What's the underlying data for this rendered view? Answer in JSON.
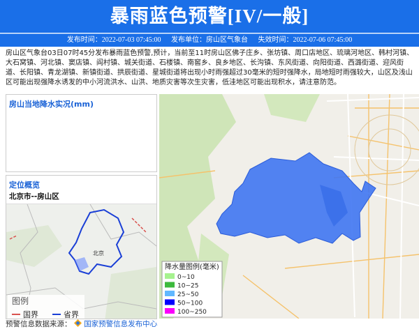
{
  "header": {
    "title": "暴雨蓝色预警[IV/一般]",
    "issue_time": "发布时间：2022-07-03 07:45:00",
    "issuer": "发布单位：房山区气象台",
    "expire_time": "失效时间：2022-07-06 07:45:00"
  },
  "content": "房山区气象台03日07时45分发布暴雨蓝色预警,预计，当前至11时房山区佛子庄乡、张坊镇、周口店地区、琉璃河地区、韩村河镇、大石窝镇、河北镇、窦店镇、阎村镇、城关街道、石楼镇、南窖乡、良乡地区、长沟镇、东风街道、向阳街道、西潞街道、迎风街道、长阳镇、青龙湖镇、新镇街道、拱辰街道、星城街道将出现小时雨强超过30毫米的短时强降水，局地短时雨强较大，山区及浅山区可能出现强降水诱发的中小河流洪水、山洪、地质灾害等次生灾害，低洼地区可能出现积水，请注意防范。",
  "precip_panel": {
    "title": "房山当地降水实况(mm)"
  },
  "location_panel": {
    "title": "定位概览",
    "region": "北京市--房山区",
    "map_label": "北京",
    "legend": {
      "title": "图例",
      "items": [
        {
          "label": "国界",
          "color": "#d9534f"
        },
        {
          "label": "省界",
          "color": "#1a3fd6"
        }
      ]
    }
  },
  "map_legend": {
    "title": "降水量图例(毫米)",
    "items": [
      {
        "label": "0~10",
        "color": "#a6f28f"
      },
      {
        "label": "10~25",
        "color": "#3dba3d"
      },
      {
        "label": "25~50",
        "color": "#61b8ff"
      },
      {
        "label": "50~100",
        "color": "#0000fe"
      },
      {
        "label": "100~250",
        "color": "#fa00fa"
      }
    ]
  },
  "footer": {
    "label": "预警信息数据来源：",
    "source": "国家预警信息发布中心"
  }
}
